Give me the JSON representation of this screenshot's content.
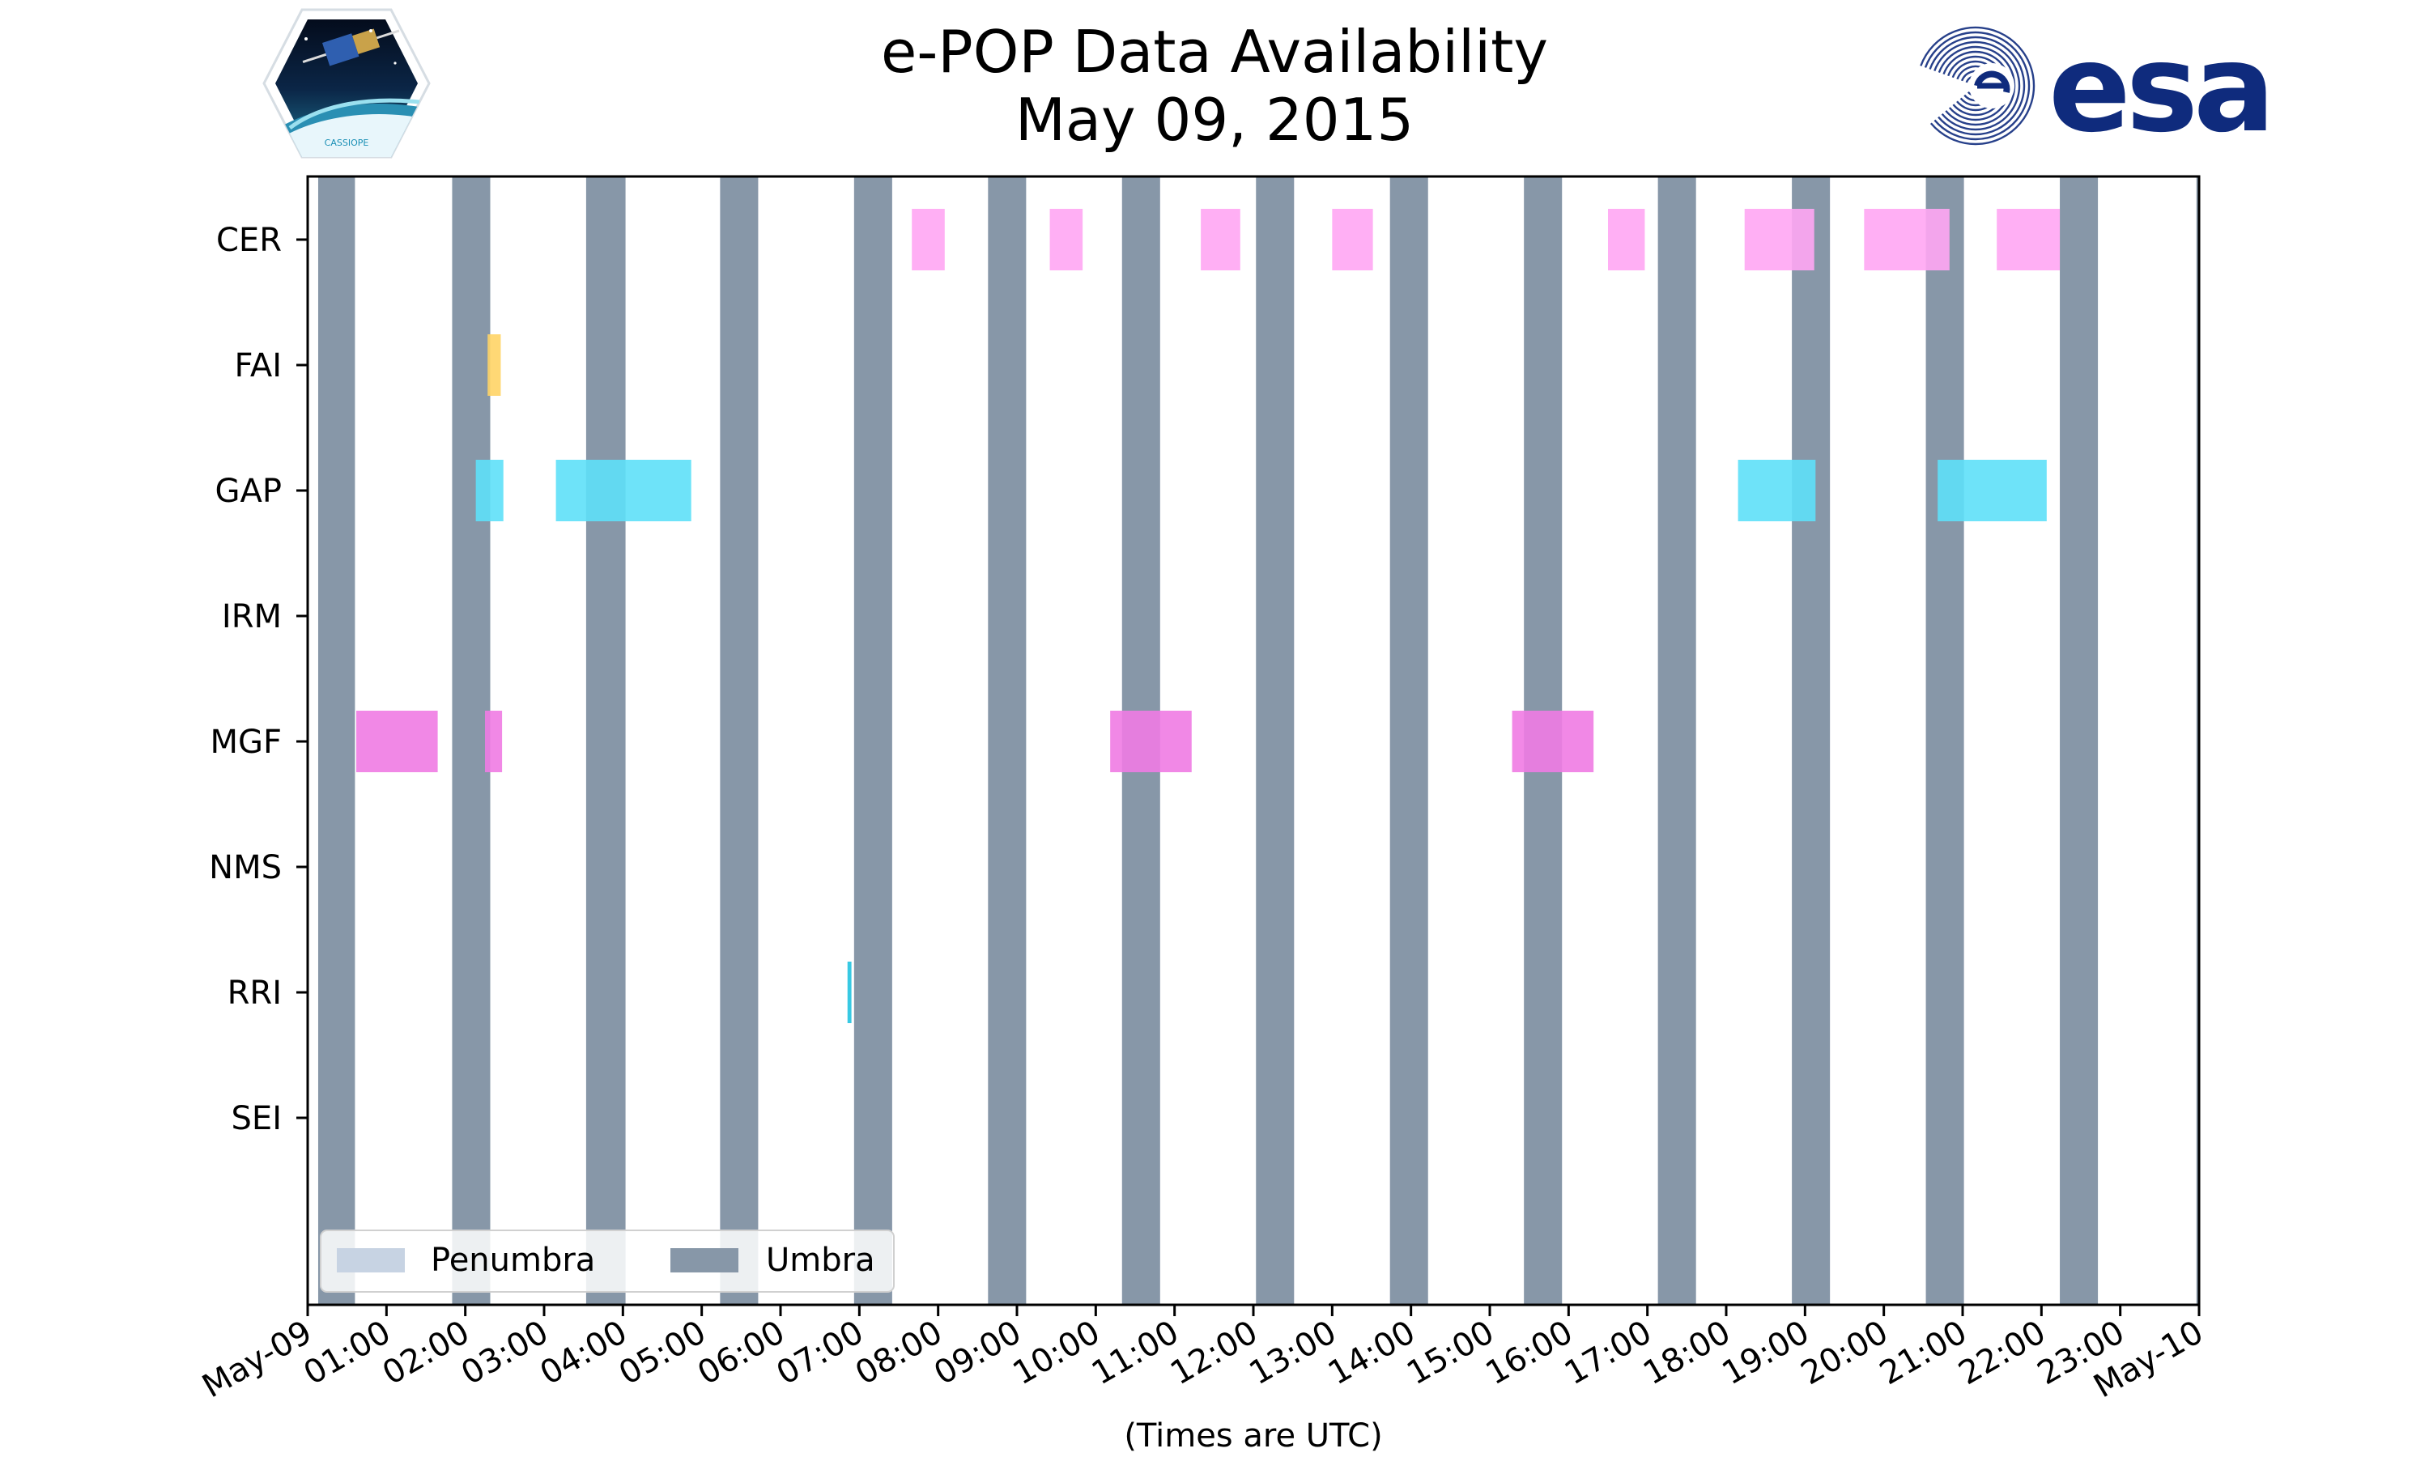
{
  "header": {
    "title": "e-POP Data Availability",
    "subtitle": "May 09, 2015"
  },
  "logos": {
    "left_caption": "CASSIOPE",
    "right_text": "esa"
  },
  "colors": {
    "umbra": "#8797a8",
    "penumbra": "#c7d3e3",
    "cer": "#ffa6f3",
    "fai": "#ffd466",
    "gap": "#5ee0f8",
    "mgf": "#f07be3",
    "rri": "#22c3e0",
    "esa_blue": "#0f2b7d"
  },
  "chart_data": {
    "type": "timeline",
    "title": "e-POP Data Availability",
    "subtitle": "May 09, 2015",
    "xlabel": "(Times are UTC)",
    "ylabel": "",
    "x_range": [
      "2015-05-09 00:00",
      "2015-05-10 00:00"
    ],
    "x_ticks": [
      "May-09",
      "01:00",
      "02:00",
      "03:00",
      "04:00",
      "05:00",
      "06:00",
      "07:00",
      "08:00",
      "09:00",
      "10:00",
      "11:00",
      "12:00",
      "13:00",
      "14:00",
      "15:00",
      "16:00",
      "17:00",
      "18:00",
      "19:00",
      "20:00",
      "21:00",
      "22:00",
      "23:00",
      "May-10"
    ],
    "instruments": [
      "CER",
      "FAI",
      "GAP",
      "IRM",
      "MGF",
      "NMS",
      "RRI",
      "SEI"
    ],
    "legend": {
      "placement": "lower-left",
      "entries": [
        "Penumbra",
        "Umbra"
      ]
    },
    "umbra": [
      [
        "00:08",
        "00:36"
      ],
      [
        "01:50",
        "02:19"
      ],
      [
        "03:32",
        "04:02"
      ],
      [
        "05:14",
        "05:43"
      ],
      [
        "06:56",
        "07:25"
      ],
      [
        "08:38",
        "09:07"
      ],
      [
        "10:20",
        "10:49"
      ],
      [
        "12:02",
        "12:31"
      ],
      [
        "13:44",
        "14:13"
      ],
      [
        "15:26",
        "15:55"
      ],
      [
        "17:08",
        "17:37"
      ],
      [
        "18:50",
        "19:19"
      ],
      [
        "20:32",
        "21:01"
      ],
      [
        "22:14",
        "22:43"
      ],
      [
        "23:58",
        "24:00"
      ]
    ],
    "series": [
      {
        "name": "CER",
        "intervals": [
          [
            "07:40",
            "08:05"
          ],
          [
            "09:25",
            "09:50"
          ],
          [
            "11:20",
            "11:50"
          ],
          [
            "13:00",
            "13:31"
          ],
          [
            "16:30",
            "16:58"
          ],
          [
            "18:14",
            "19:07"
          ],
          [
            "19:45",
            "20:50"
          ],
          [
            "21:26",
            "22:14"
          ]
        ]
      },
      {
        "name": "FAI",
        "intervals": [
          [
            "02:17",
            "02:27"
          ]
        ]
      },
      {
        "name": "GAP",
        "intervals": [
          [
            "02:08",
            "02:29"
          ],
          [
            "03:09",
            "04:52"
          ],
          [
            "18:09",
            "19:08"
          ],
          [
            "20:41",
            "22:04"
          ]
        ]
      },
      {
        "name": "IRM",
        "intervals": []
      },
      {
        "name": "MGF",
        "intervals": [
          [
            "00:37",
            "01:39"
          ],
          [
            "02:15",
            "02:28"
          ],
          [
            "10:11",
            "11:13"
          ],
          [
            "15:17",
            "16:19"
          ]
        ]
      },
      {
        "name": "NMS",
        "intervals": []
      },
      {
        "name": "RRI",
        "intervals": [
          [
            "06:51",
            "06:54"
          ]
        ]
      },
      {
        "name": "SEI",
        "intervals": []
      }
    ]
  }
}
